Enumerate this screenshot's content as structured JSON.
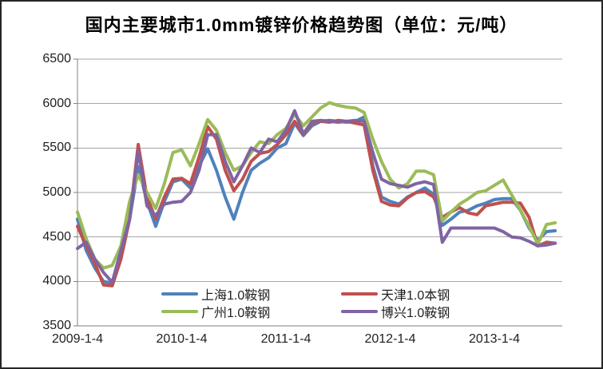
{
  "title": "国内主要城市1.0mm镀锌价格趋势图（单位：元/吨）",
  "y_axis": {
    "tick_labels": [
      "6500",
      "6000",
      "5500",
      "5000",
      "4500",
      "4000",
      "3500"
    ],
    "min": 3500,
    "max": 6500,
    "step": 500
  },
  "x_axis": {
    "tick_labels": [
      "2009-1-4",
      "2010-1-4",
      "2011-1-4",
      "2012-1-4",
      "2013-1-4"
    ]
  },
  "colors": {
    "grid": "#a6a6a6",
    "axis": "#808080",
    "text": "#1f1f1f",
    "series_blue": "#4F81BD",
    "series_red": "#C0504D",
    "series_green": "#9BBB59",
    "series_purple": "#8064A2"
  },
  "chart_data": {
    "type": "line",
    "title": "国内主要城市1.0mm镀锌价格趋势图（单位：元/吨）",
    "ylabel": "",
    "xlabel": "",
    "ylim": [
      3500,
      6500
    ],
    "y_tick_step": 500,
    "grid": true,
    "legend_position": "inside-bottom",
    "x_axis_labels": [
      "2009-1-4",
      "2010-1-4",
      "2011-1-4",
      "2012-1-4",
      "2013-1-4"
    ],
    "x": [
      "2009-01",
      "2009-02",
      "2009-03",
      "2009-04",
      "2009-05",
      "2009-06",
      "2009-07",
      "2009-08",
      "2009-09",
      "2009-10",
      "2009-11",
      "2009-12",
      "2010-01",
      "2010-02",
      "2010-03",
      "2010-04",
      "2010-05",
      "2010-06",
      "2010-07",
      "2010-08",
      "2010-09",
      "2010-10",
      "2010-11",
      "2010-12",
      "2011-01",
      "2011-02",
      "2011-03",
      "2011-04",
      "2011-05",
      "2011-06",
      "2011-07",
      "2011-08",
      "2011-09",
      "2011-10",
      "2011-11",
      "2011-12",
      "2012-01",
      "2012-02",
      "2012-03",
      "2012-04",
      "2012-05",
      "2012-06",
      "2012-07",
      "2012-08",
      "2012-09",
      "2012-10",
      "2012-11",
      "2012-12",
      "2013-01",
      "2013-02",
      "2013-03",
      "2013-04",
      "2013-05",
      "2013-06",
      "2013-07",
      "2013-08"
    ],
    "series": [
      {
        "name": "上海1.0鞍钢",
        "color": "#4F81BD",
        "values": [
          4700,
          4350,
          4150,
          4000,
          3980,
          4300,
          4700,
          5290,
          4900,
          4620,
          4900,
          5120,
          5150,
          5050,
          5300,
          5490,
          5250,
          4950,
          4700,
          5000,
          5250,
          5330,
          5390,
          5500,
          5550,
          5780,
          5640,
          5750,
          5800,
          5810,
          5800,
          5790,
          5800,
          5850,
          5300,
          4950,
          4900,
          4870,
          4950,
          5000,
          5050,
          4980,
          4630,
          4700,
          4780,
          4800,
          4850,
          4880,
          4920,
          4930,
          4930,
          4800,
          4600,
          4460,
          4560,
          4570
        ]
      },
      {
        "name": "天津1.0本钢",
        "color": "#C0504D",
        "values": [
          4620,
          4400,
          4200,
          3960,
          3950,
          4250,
          4700,
          5540,
          4950,
          4700,
          4950,
          5150,
          5160,
          5100,
          5400,
          5740,
          5600,
          5250,
          5020,
          5150,
          5350,
          5440,
          5460,
          5540,
          5650,
          5800,
          5650,
          5780,
          5800,
          5790,
          5810,
          5800,
          5780,
          5760,
          5250,
          4900,
          4860,
          4850,
          4940,
          5000,
          5010,
          4950,
          4720,
          4780,
          4830,
          4770,
          4750,
          4850,
          4870,
          4890,
          4890,
          4880,
          4720,
          4400,
          4440,
          4430
        ]
      },
      {
        "name": "广州1.0鞍钢",
        "color": "#9BBB59",
        "values": [
          4780,
          4480,
          4250,
          4150,
          4180,
          4400,
          4900,
          5200,
          5000,
          4820,
          5100,
          5450,
          5480,
          5300,
          5550,
          5820,
          5700,
          5450,
          5250,
          5300,
          5450,
          5570,
          5550,
          5650,
          5720,
          5880,
          5750,
          5850,
          5950,
          6010,
          5980,
          5960,
          5950,
          5900,
          5600,
          5350,
          5150,
          5050,
          5100,
          5240,
          5240,
          5200,
          4680,
          4780,
          4870,
          4930,
          5000,
          5020,
          5080,
          5140,
          4970,
          4800,
          4620,
          4420,
          4640,
          4660
        ]
      },
      {
        "name": "博兴1.0鞍钢",
        "color": "#8064A2",
        "values": [
          4370,
          4440,
          4250,
          4100,
          3990,
          4350,
          4700,
          5470,
          4850,
          4740,
          4870,
          4890,
          4900,
          5000,
          5250,
          5650,
          5650,
          5350,
          5120,
          5300,
          5500,
          5450,
          5600,
          5570,
          5700,
          5920,
          5660,
          5800,
          5810,
          5800,
          5790,
          5800,
          5810,
          5800,
          5450,
          5150,
          5100,
          5080,
          5060,
          5100,
          5120,
          5090,
          4440,
          4600,
          4600,
          4600,
          4600,
          4600,
          4600,
          4560,
          4500,
          4490,
          4450,
          4400,
          4410,
          4430
        ]
      }
    ]
  }
}
